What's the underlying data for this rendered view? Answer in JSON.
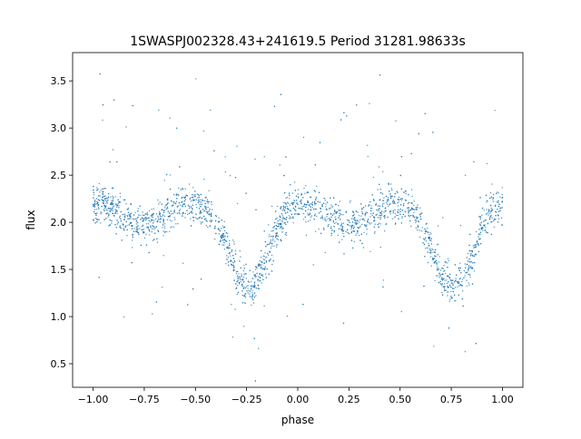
{
  "chart_data": {
    "type": "scatter",
    "title": "1SWASPJ002328.43+241619.5 Period 31281.98633s",
    "xlabel": "phase",
    "ylabel": "flux",
    "xlim": [
      -1.1,
      1.1
    ],
    "ylim": [
      0.25,
      3.8
    ],
    "xticks": [
      -1.0,
      -0.75,
      -0.5,
      -0.25,
      0.0,
      0.25,
      0.5,
      0.75,
      1.0
    ],
    "xtick_labels": [
      "−1.00",
      "−0.75",
      "−0.50",
      "−0.25",
      "0.00",
      "0.25",
      "0.50",
      "0.75",
      "1.00"
    ],
    "yticks": [
      0.5,
      1.0,
      1.5,
      2.0,
      2.5,
      3.0,
      3.5
    ],
    "ytick_labels": [
      "0.5",
      "1.0",
      "1.5",
      "2.0",
      "2.5",
      "3.0",
      "3.5"
    ],
    "grid": false,
    "legend": "none",
    "marker_color": "#1f77b4",
    "phase_range": [
      -1.0,
      1.0
    ],
    "light_curve_profile": {
      "x": [
        0.0,
        0.05,
        0.1,
        0.15,
        0.2,
        0.25,
        0.3,
        0.35,
        0.4,
        0.45,
        0.5,
        0.55,
        0.6,
        0.65,
        0.7,
        0.75,
        0.8,
        0.85,
        0.9,
        0.95,
        1.0
      ],
      "y": [
        2.2,
        2.2,
        2.15,
        2.05,
        2.0,
        1.97,
        1.99,
        2.05,
        2.15,
        2.2,
        2.2,
        2.15,
        2.0,
        1.75,
        1.45,
        1.32,
        1.38,
        1.6,
        1.95,
        2.15,
        2.2
      ]
    }
  }
}
